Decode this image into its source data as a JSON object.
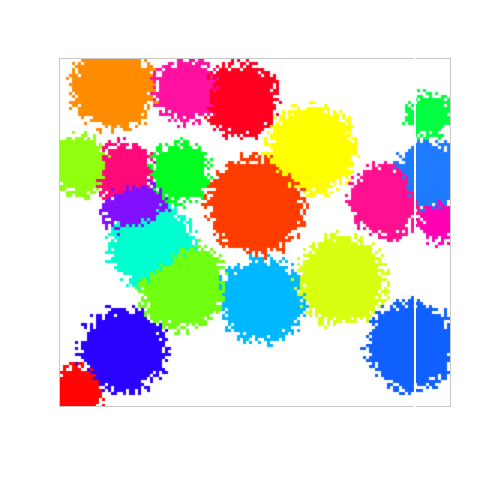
{
  "palette": {
    "background": "#ffffff",
    "frame": "#c8c8c8",
    "cluster_colors": [
      "#ff8c00",
      "#ff10a0",
      "#ff0020",
      "#ffff00",
      "#00ff40",
      "#1e7bff",
      "#90ff10",
      "#ff0a78",
      "#00ff20",
      "#ff3c00",
      "#8010ff",
      "#00ffd0",
      "#ff1090",
      "#ff00b4",
      "#70ff10",
      "#00b8ff",
      "#d8ff10",
      "#1060ff",
      "#2a00ff",
      "#ff0505"
    ]
  },
  "clusters": [
    {
      "name": "orange-blob",
      "color_index": 0
    },
    {
      "name": "pink-blob",
      "color_index": 1
    },
    {
      "name": "red-blob",
      "color_index": 2
    },
    {
      "name": "yellow-blob",
      "color_index": 3
    },
    {
      "name": "green-blob",
      "color_index": 4
    },
    {
      "name": "blue-blob",
      "color_index": 5
    },
    {
      "name": "lime-blob",
      "color_index": 6
    },
    {
      "name": "magenta-blob",
      "color_index": 7
    },
    {
      "name": "bright-green-blob",
      "color_index": 8
    },
    {
      "name": "red-orange-blob",
      "color_index": 9
    },
    {
      "name": "purple-blob",
      "color_index": 10
    },
    {
      "name": "cyan-blob",
      "color_index": 11
    },
    {
      "name": "hot-pink-blob",
      "color_index": 12
    },
    {
      "name": "fuchsia-blob",
      "color_index": 13
    },
    {
      "name": "yellow-green-blob",
      "color_index": 14
    },
    {
      "name": "sky-blue-blob",
      "color_index": 15
    },
    {
      "name": "chartreuse-blob",
      "color_index": 16
    },
    {
      "name": "royal-blue-blob",
      "color_index": 17
    },
    {
      "name": "indigo-blob",
      "color_index": 18
    },
    {
      "name": "scarlet-blob",
      "color_index": 19
    }
  ]
}
